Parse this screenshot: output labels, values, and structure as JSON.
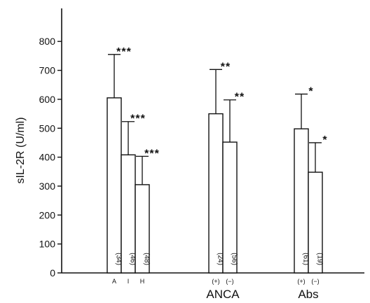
{
  "chart_data": {
    "type": "bar",
    "title": "",
    "xlabel": "",
    "ylabel": "sIL-2R (U/ml)",
    "ylim": [
      0,
      900
    ],
    "yticks": [
      0,
      100,
      200,
      300,
      400,
      500,
      600,
      700,
      800
    ],
    "grid": false,
    "legend": "none",
    "groups": [
      {
        "name": "",
        "bars": [
          {
            "category": "A",
            "value": 605,
            "error_upper": 755,
            "n": "(34)",
            "significance": "***"
          },
          {
            "category": "I",
            "value": 408,
            "error_upper": 523,
            "n": "(46)",
            "significance": "***"
          },
          {
            "category": "H",
            "value": 305,
            "error_upper": 403,
            "n": "(48)",
            "significance": "***"
          }
        ]
      },
      {
        "name": "ANCA",
        "bars": [
          {
            "category": "(+)",
            "value": 550,
            "error_upper": 703,
            "n": "(24)",
            "significance": "**"
          },
          {
            "category": "(−)",
            "value": 452,
            "error_upper": 598,
            "n": "(56)",
            "significance": "**"
          }
        ]
      },
      {
        "name": "Abs",
        "bars": [
          {
            "category": "(+)",
            "value": 498,
            "error_upper": 618,
            "n": "(61)",
            "significance": "*"
          },
          {
            "category": "(−)",
            "value": 348,
            "error_upper": 450,
            "n": "(19)",
            "significance": "*"
          }
        ]
      }
    ]
  },
  "colors": {
    "bar_fill": "#ffffff",
    "ink": "#111111"
  }
}
